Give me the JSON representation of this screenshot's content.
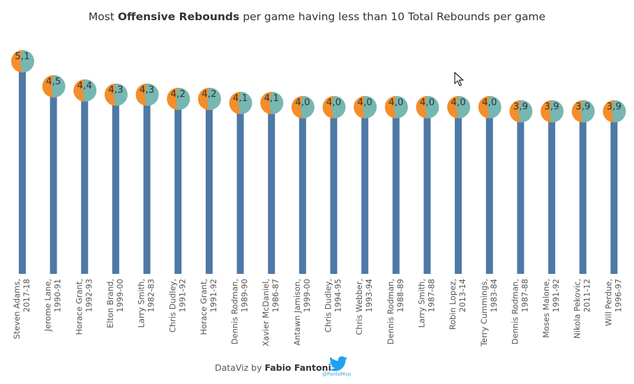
{
  "title": {
    "pre": "Most ",
    "bold": "Offensive Rebounds",
    "post": " per game having less than 10 Total Rebounds per game"
  },
  "footer": {
    "pre": "DataViz by ",
    "author": "Fabio Fantoni",
    "handle": "@PantoMvp"
  },
  "icons": {
    "twitter": "twitter-bird-icon",
    "cursor": "mouse-pointer-icon"
  },
  "colors": {
    "stem": "#4e79a7",
    "left_half": "#f28e2b",
    "right_half": "#76b7b2",
    "twitter": "#1da1f2"
  },
  "chart_data": {
    "type": "lollipop",
    "title": "Most Offensive Rebounds per game having less than 10 Total Rebounds per game",
    "ylim": [
      0,
      5.2
    ],
    "categories": [
      "Steven Adams, 2017-18",
      "Jerome Lane, 1990-91",
      "Horace Grant, 1992-93",
      "Elton Brand, 1999-00",
      "Larry Smith, 1982-83",
      "Chris Dudley, 1991-92",
      "Horace Grant, 1991-92",
      "Dennis Rodman, 1989-90",
      "Xavier McDaniel, 1986-87",
      "Antawn Jamison, 1999-00",
      "Chris Dudley, 1994-95",
      "Chris Webber, 1993-94",
      "Dennis Rodman, 1988-89",
      "Larry Smith, 1987-88",
      "Robin Lopez, 2013-14",
      "Terry Cummings, 1983-84",
      "Dennis Rodman, 1987-88",
      "Moses Malone, 1991-92",
      "Nikola Pekovic, 2011-12",
      "Will Perdue, 1996-97"
    ],
    "labels": [
      "5,1",
      "4,5",
      "4,4",
      "4,3",
      "4,3",
      "4,2",
      "4,2",
      "4,1",
      "4,1",
      "4,0",
      "4,0",
      "4,0",
      "4,0",
      "4,0",
      "4,0",
      "4,0",
      "3,9",
      "3,9",
      "3,9",
      "3,9"
    ],
    "values": [
      5.1,
      4.5,
      4.4,
      4.3,
      4.3,
      4.2,
      4.2,
      4.1,
      4.1,
      4.0,
      4.0,
      4.0,
      4.0,
      4.0,
      4.0,
      4.0,
      3.9,
      3.9,
      3.9,
      3.9
    ]
  }
}
